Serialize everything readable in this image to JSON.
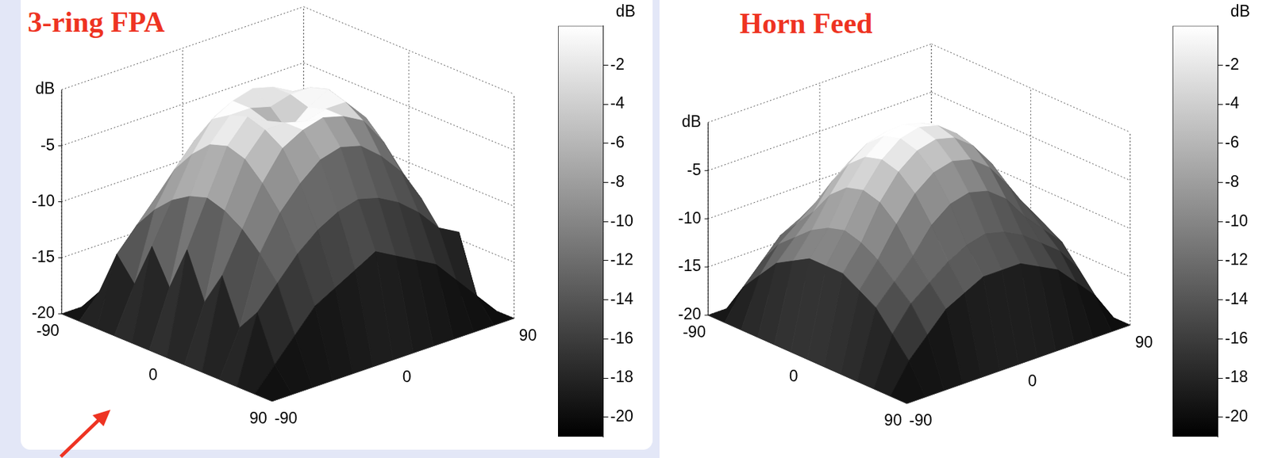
{
  "chart_data": [
    {
      "type": "surface",
      "title": "3-ring FPA",
      "z_label": "dB",
      "x": [
        -90,
        -75,
        -60,
        -45,
        -30,
        -15,
        0,
        15,
        30,
        45,
        60,
        75,
        90
      ],
      "y": [
        -90,
        -75,
        -60,
        -45,
        -30,
        -15,
        0,
        15,
        30,
        45,
        60,
        75,
        90
      ],
      "z": [
        [
          -20,
          -20,
          -20,
          -20,
          -20,
          -20,
          -20,
          -20,
          -20,
          -20,
          -20,
          -20,
          -20
        ],
        [
          -20,
          -18,
          -14,
          -16,
          -12,
          -15,
          -11,
          -15,
          -12,
          -16,
          -14,
          -18,
          -20
        ],
        [
          -20,
          -16,
          -12,
          -10,
          -8.5,
          -7.5,
          -7,
          -7.5,
          -8.5,
          -10,
          -12,
          -16,
          -20
        ],
        [
          -20,
          -14,
          -10,
          -7,
          -5,
          -3.5,
          -3,
          -3.5,
          -5,
          -7,
          -10,
          -14,
          -20
        ],
        [
          -20,
          -13,
          -8.5,
          -5,
          -2.5,
          -1.5,
          -1,
          -1.5,
          -2.5,
          -5,
          -8.5,
          -13,
          -20
        ],
        [
          -20,
          -12,
          -7.5,
          -3.5,
          -1.5,
          -1.5,
          -2,
          -1.5,
          -1.5,
          -3.5,
          -7.5,
          -12,
          -20
        ],
        [
          -20,
          -11,
          -7,
          -3,
          -1,
          -2,
          -3.5,
          -2,
          -1,
          -3,
          -7,
          -11,
          -20
        ],
        [
          -20,
          -12,
          -7.5,
          -3.5,
          -1.5,
          -1.5,
          -2,
          -1.5,
          -1.5,
          -3.5,
          -7.5,
          -12,
          -20
        ],
        [
          -20,
          -13,
          -8.5,
          -5,
          -2.5,
          -1.5,
          -1,
          -1.5,
          -2.5,
          -5,
          -8.5,
          -13,
          -20
        ],
        [
          -20,
          -14,
          -10,
          -7,
          -5,
          -3.5,
          -3,
          -3.5,
          -5,
          -7,
          -10,
          -14,
          -20
        ],
        [
          -20,
          -16,
          -12,
          -10,
          -8.5,
          -7.5,
          -7,
          -7.5,
          -8.5,
          -10,
          -12,
          -16,
          -20
        ],
        [
          -20,
          -18,
          -13,
          -17,
          -12,
          -14,
          -11,
          -16,
          -12,
          -15,
          -13,
          -18,
          -20
        ],
        [
          -20,
          -20,
          -20,
          -20,
          -20,
          -20,
          -20,
          -20,
          -20,
          -20,
          -20,
          -20,
          -20
        ]
      ],
      "xlim": [
        -90,
        90
      ],
      "xticks": [
        -90,
        0,
        90
      ],
      "ylim": [
        -90,
        90
      ],
      "yticks": [
        -90,
        0,
        90
      ],
      "zlim": [
        -20,
        0
      ],
      "zticks": [
        -20,
        -15,
        -10,
        -5
      ],
      "grid": true,
      "colorbar_label": "dB",
      "colorbar_range": [
        -21,
        0
      ],
      "colorbar_ticks": [
        -2,
        -4,
        -6,
        -8,
        -10,
        -12,
        -14,
        -16,
        -18,
        -20
      ]
    },
    {
      "type": "surface",
      "title": "Horn Feed",
      "z_label": "dB",
      "x": [
        -90,
        -75,
        -60,
        -45,
        -30,
        -15,
        0,
        15,
        30,
        45,
        60,
        75,
        90
      ],
      "y": [
        -90,
        -75,
        -60,
        -45,
        -30,
        -15,
        0,
        15,
        30,
        45,
        60,
        75,
        90
      ],
      "z": [
        [
          -20,
          -20,
          -20,
          -20,
          -20,
          -20,
          -20,
          -20,
          -20,
          -20,
          -20,
          -20,
          -20
        ],
        [
          -20,
          -17,
          -15,
          -13,
          -12,
          -11,
          -11,
          -11,
          -12,
          -13,
          -15,
          -17,
          -20
        ],
        [
          -20,
          -15,
          -12.5,
          -11,
          -9.5,
          -8.5,
          -8,
          -8.5,
          -9.5,
          -11,
          -12.5,
          -15,
          -20
        ],
        [
          -20,
          -13,
          -11,
          -9,
          -6.5,
          -5,
          -4.5,
          -5,
          -6.5,
          -9,
          -11,
          -13,
          -20
        ],
        [
          -20,
          -12,
          -9.5,
          -6.5,
          -4,
          -2.5,
          -2,
          -2.5,
          -4,
          -6.5,
          -9.5,
          -12,
          -20
        ],
        [
          -20,
          -11,
          -8.5,
          -5,
          -2.5,
          -1,
          -0.5,
          -1,
          -2.5,
          -5,
          -8.5,
          -11,
          -20
        ],
        [
          -20,
          -11,
          -8,
          -4.5,
          -2,
          -0.5,
          0,
          -0.5,
          -2,
          -4.5,
          -8,
          -11,
          -20
        ],
        [
          -20,
          -11,
          -8.5,
          -5,
          -2.5,
          -1,
          -0.5,
          -1,
          -2.5,
          -5,
          -8.5,
          -11,
          -20
        ],
        [
          -20,
          -12,
          -9.5,
          -6.5,
          -4,
          -2.5,
          -2,
          -2.5,
          -4,
          -6.5,
          -9.5,
          -12,
          -20
        ],
        [
          -20,
          -13,
          -11,
          -9,
          -6.5,
          -5,
          -4.5,
          -5,
          -6.5,
          -9,
          -11,
          -13,
          -20
        ],
        [
          -20,
          -15,
          -12.5,
          -11,
          -9.5,
          -8.5,
          -8,
          -8.5,
          -9.5,
          -11,
          -12.5,
          -15,
          -20
        ],
        [
          -20,
          -17,
          -15,
          -13,
          -12,
          -11,
          -11,
          -11,
          -12,
          -13,
          -15,
          -17,
          -20
        ],
        [
          -20,
          -20,
          -20,
          -20,
          -20,
          -20,
          -20,
          -20,
          -20,
          -20,
          -20,
          -20,
          -20
        ]
      ],
      "xlim": [
        -90,
        90
      ],
      "xticks": [
        -90,
        0,
        90
      ],
      "ylim": [
        -90,
        90
      ],
      "yticks": [
        -90,
        0,
        90
      ],
      "zlim": [
        -20,
        0
      ],
      "zticks": [
        -20,
        -15,
        -10,
        -5
      ],
      "grid": true,
      "colorbar_label": "dB",
      "colorbar_range": [
        -21,
        0
      ],
      "colorbar_ticks": [
        -2,
        -4,
        -6,
        -8,
        -10,
        -12,
        -14,
        -16,
        -18,
        -20
      ]
    }
  ]
}
